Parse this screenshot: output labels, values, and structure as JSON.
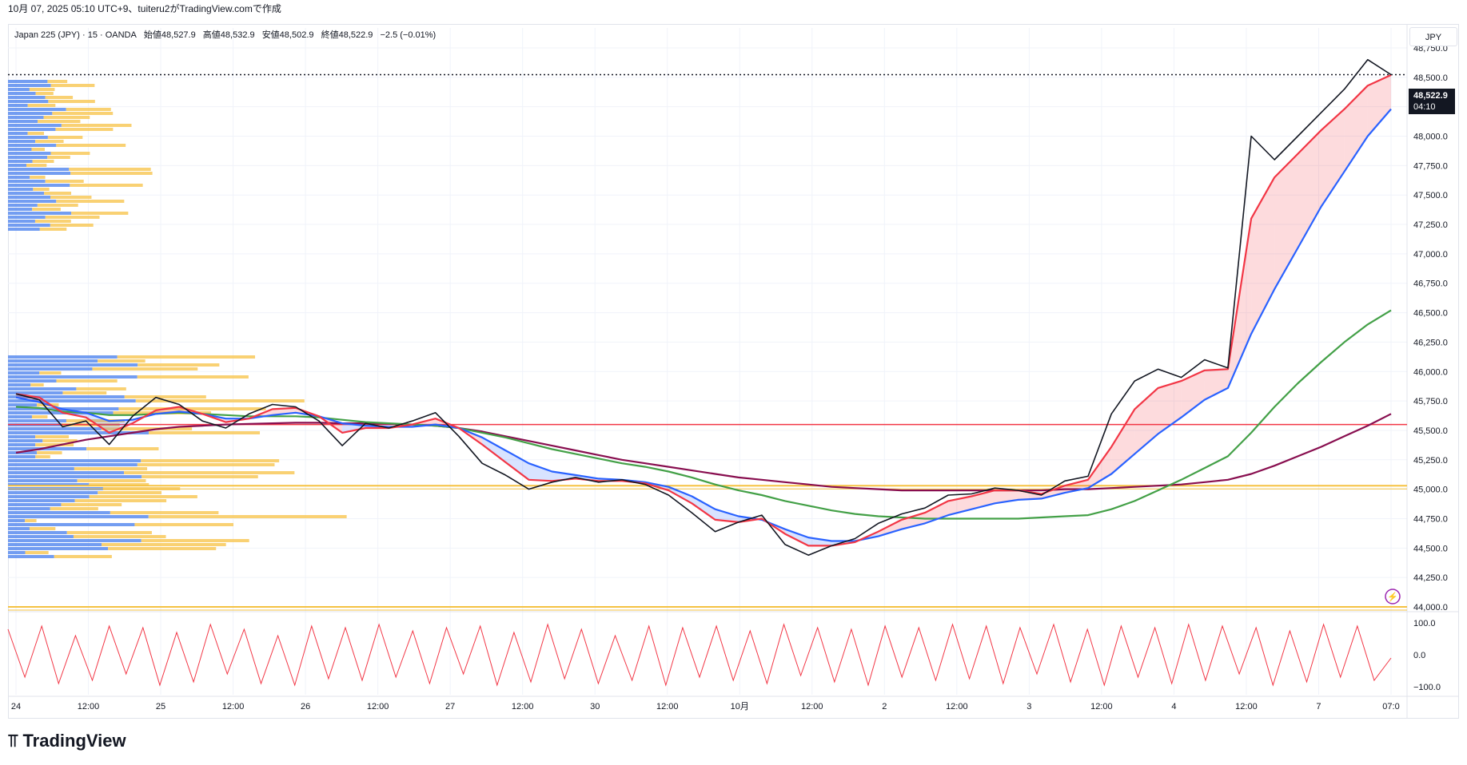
{
  "header": {
    "text": "10月 07, 2025 05:10 UTC+9、tuiteru2がTradingView.comで作成"
  },
  "legend": {
    "symbol": "Japan 225 (JPY) · 15 · OANDA",
    "open": "始値48,527.9",
    "high": "高値48,532.9",
    "low": "安値48,502.9",
    "close": "終値48,522.9",
    "change": "−2.5 (−0.01%)"
  },
  "currency_label": "JPY",
  "last_price": {
    "value": "48,522.9",
    "countdown": "04:10"
  },
  "footer": {
    "logo": "TradingView"
  },
  "colors": {
    "candles": "#131722",
    "ema_fast": "#f23645",
    "ema_mid": "#2962ff",
    "ema_slow": "#43a047",
    "sma_long": "#880e4f",
    "hline": "#f23645",
    "level_orange": "#f5c242",
    "vp_buy": "#5b8def",
    "vp_sell": "#f9c95b",
    "oscillator": "#f23645"
  },
  "chart_data": [
    {
      "type": "line",
      "title": "Japan 225 (JPY) · 15 · OANDA",
      "ylim": [
        44000,
        48750
      ],
      "y_ticks": [
        "48,750.0",
        "48,500.0",
        "48,250.0",
        "48,000.0",
        "47,750.0",
        "47,500.0",
        "47,250.0",
        "47,000.0",
        "46,750.0",
        "46,500.0",
        "46,250.0",
        "46,000.0",
        "45,750.0",
        "45,500.0",
        "45,250.0",
        "45,000.0",
        "44,750.0",
        "44,500.0",
        "44,250.0",
        "44,000.0"
      ],
      "x_ticks": [
        "24",
        "12:00",
        "25",
        "12:00",
        "26",
        "12:00",
        "27",
        "12:00",
        "30",
        "12:00",
        "10月",
        "12:00",
        "2",
        "12:00",
        "3",
        "12:00",
        "4",
        "12:00",
        "7",
        "07:0"
      ],
      "horizontal_levels": [
        45550,
        45030,
        44000
      ],
      "series": [
        {
          "name": "price",
          "values": [
            45810,
            45760,
            45530,
            45580,
            45380,
            45620,
            45780,
            45720,
            45580,
            45520,
            45640,
            45720,
            45700,
            45580,
            45370,
            45560,
            45520,
            45580,
            45650,
            45450,
            45220,
            45120,
            45000,
            45060,
            45100,
            45060,
            45080,
            45040,
            44950,
            44800,
            44640,
            44720,
            44780,
            44530,
            44440,
            44520,
            44580,
            44710,
            44790,
            44840,
            44950,
            44960,
            45010,
            44990,
            44950,
            45070,
            45110,
            45640,
            45920,
            46020,
            45950,
            46100,
            46030,
            48000,
            47800,
            48000,
            48200,
            48400,
            48650,
            48523
          ]
        },
        {
          "name": "ema_fast",
          "values": [
            45810,
            45780,
            45650,
            45610,
            45480,
            45560,
            45670,
            45700,
            45640,
            45570,
            45600,
            45680,
            45690,
            45620,
            45480,
            45520,
            45520,
            45550,
            45600,
            45520,
            45380,
            45230,
            45080,
            45070,
            45090,
            45070,
            45070,
            45050,
            44990,
            44880,
            44740,
            44720,
            44750,
            44620,
            44520,
            44520,
            44550,
            44640,
            44740,
            44800,
            44900,
            44940,
            44990,
            44990,
            44960,
            45030,
            45080,
            45360,
            45680,
            45860,
            45920,
            46010,
            46020,
            47300,
            47650,
            47850,
            48050,
            48230,
            48430,
            48520
          ]
        },
        {
          "name": "ema_mid",
          "values": [
            45780,
            45740,
            45680,
            45650,
            45580,
            45590,
            45640,
            45660,
            45640,
            45600,
            45600,
            45630,
            45650,
            45620,
            45560,
            45540,
            45530,
            45530,
            45550,
            45520,
            45440,
            45330,
            45220,
            45150,
            45120,
            45090,
            45080,
            45060,
            45020,
            44940,
            44830,
            44770,
            44740,
            44660,
            44590,
            44560,
            44560,
            44600,
            44660,
            44710,
            44780,
            44830,
            44880,
            44910,
            44920,
            44970,
            45010,
            45130,
            45300,
            45470,
            45610,
            45760,
            45860,
            46320,
            46700,
            47050,
            47400,
            47700,
            48000,
            48230
          ]
        },
        {
          "name": "ema_slow",
          "values": [
            45700,
            45690,
            45660,
            45650,
            45630,
            45630,
            45640,
            45650,
            45640,
            45630,
            45620,
            45620,
            45620,
            45610,
            45590,
            45570,
            45560,
            45550,
            45540,
            45520,
            45480,
            45440,
            45390,
            45340,
            45300,
            45260,
            45220,
            45190,
            45150,
            45100,
            45040,
            44990,
            44950,
            44900,
            44860,
            44820,
            44790,
            44770,
            44760,
            44750,
            44750,
            44750,
            44750,
            44750,
            44760,
            44770,
            44780,
            44830,
            44900,
            44990,
            45080,
            45180,
            45280,
            45480,
            45700,
            45900,
            46080,
            46250,
            46400,
            46520
          ]
        },
        {
          "name": "sma_long",
          "values": [
            45310,
            45340,
            45380,
            45420,
            45450,
            45480,
            45510,
            45530,
            45540,
            45550,
            45555,
            45560,
            45565,
            45565,
            45560,
            45560,
            45555,
            45550,
            45540,
            45520,
            45490,
            45450,
            45410,
            45370,
            45330,
            45290,
            45250,
            45220,
            45190,
            45160,
            45130,
            45100,
            45080,
            45060,
            45040,
            45020,
            45010,
            45000,
            44990,
            44990,
            44990,
            44990,
            44990,
            44990,
            44990,
            45000,
            45000,
            45010,
            45020,
            45030,
            45040,
            45060,
            45080,
            45130,
            45200,
            45280,
            45360,
            45450,
            45540,
            45640
          ]
        }
      ]
    },
    {
      "type": "line",
      "ylim": [
        -100,
        100
      ],
      "y_ticks": [
        "100.0",
        "0.0",
        "−100.0"
      ],
      "series": [
        {
          "values": [
            80,
            -70,
            90,
            -90,
            60,
            -80,
            90,
            -60,
            85,
            -95,
            70,
            -85,
            95,
            -60,
            80,
            -90,
            60,
            -95,
            90,
            -75,
            85,
            -80,
            95,
            -70,
            75,
            -90,
            85,
            -60,
            90,
            -95,
            70,
            -85,
            95,
            -75,
            80,
            -90,
            60,
            -80,
            90,
            -95,
            85,
            -70,
            90,
            -80,
            75,
            -90,
            95,
            -65,
            85,
            -85,
            80,
            -95,
            90,
            -70,
            85,
            -80,
            95,
            -75,
            90,
            -90,
            85,
            -60,
            95,
            -85,
            80,
            -95,
            90,
            -70,
            85,
            -90,
            95,
            -80,
            90,
            -60,
            85,
            -95,
            75,
            -85,
            95,
            -70,
            90,
            -80,
            -10
          ]
        }
      ]
    }
  ]
}
